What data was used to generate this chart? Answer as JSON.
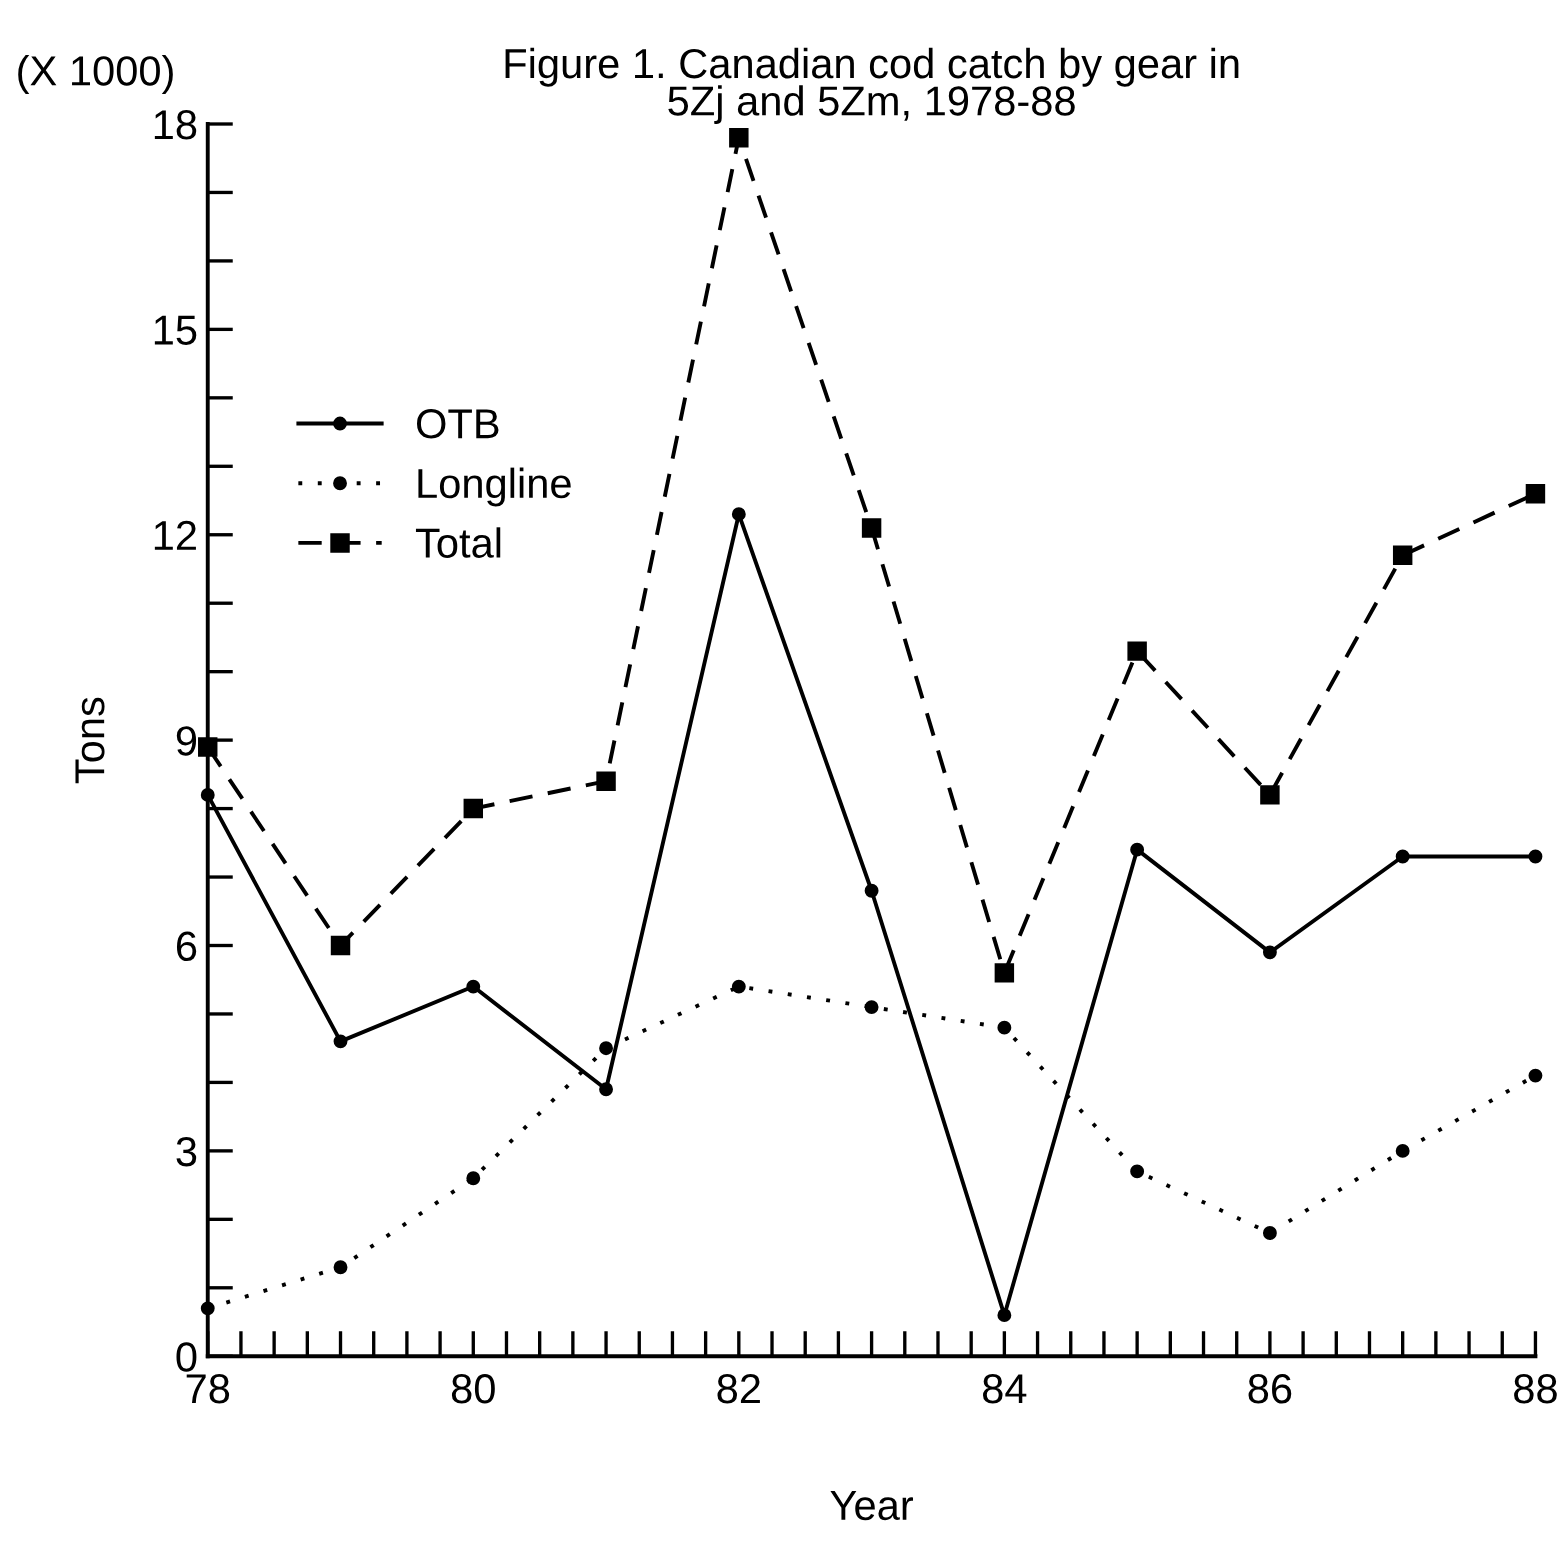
{
  "chart_data": {
    "type": "line",
    "title": "Figure 1. Canadian cod catch by gear in\n5Zj and 5Zm, 1978-88",
    "xlabel": "Year",
    "ylabel": "Tons",
    "annotations": [
      "(X 1000)"
    ],
    "x": [
      78,
      79,
      80,
      81,
      82,
      83,
      84,
      85,
      86,
      87,
      88
    ],
    "series": [
      {
        "name": "OTB",
        "color": "#000000",
        "line_style": "solid",
        "marker": "circle",
        "values": [
          8.2,
          4.6,
          5.4,
          3.9,
          12.3,
          6.8,
          0.6,
          7.4,
          5.9,
          7.3,
          7.3
        ]
      },
      {
        "name": "Longline",
        "color": "#000000",
        "line_style": "dotted",
        "marker": "circle",
        "values": [
          0.7,
          1.3,
          2.6,
          4.5,
          5.4,
          5.1,
          4.8,
          2.7,
          1.8,
          3.0,
          4.1
        ]
      },
      {
        "name": "Total",
        "color": "#000000",
        "line_style": "dashed",
        "marker": "square",
        "values": [
          8.9,
          6.0,
          8.0,
          8.4,
          17.8,
          12.1,
          5.6,
          10.3,
          8.2,
          11.7,
          12.6
        ]
      }
    ],
    "xlim": [
      78,
      88
    ],
    "ylim": [
      0,
      18
    ],
    "xticks": [
      78,
      {
        "value": 78.25,
        "label": null
      },
      {
        "value": 78.5,
        "label": null
      },
      {
        "value": 78.75,
        "label": null
      },
      {
        "value": 79,
        "label": null
      },
      {
        "value": 79.25,
        "label": null
      },
      {
        "value": 79.5,
        "label": null
      },
      {
        "value": 79.75,
        "label": null
      },
      80,
      {
        "value": 80.25,
        "label": null
      },
      {
        "value": 80.5,
        "label": null
      },
      {
        "value": 80.75,
        "label": null
      },
      {
        "value": 81,
        "label": null
      },
      {
        "value": 81.25,
        "label": null
      },
      {
        "value": 81.5,
        "label": null
      },
      {
        "value": 81.75,
        "label": null
      },
      82,
      {
        "value": 82.25,
        "label": null
      },
      {
        "value": 82.5,
        "label": null
      },
      {
        "value": 82.75,
        "label": null
      },
      {
        "value": 83,
        "label": null
      },
      {
        "value": 83.25,
        "label": null
      },
      {
        "value": 83.5,
        "label": null
      },
      {
        "value": 83.75,
        "label": null
      },
      84,
      {
        "value": 84.25,
        "label": null
      },
      {
        "value": 84.5,
        "label": null
      },
      {
        "value": 84.75,
        "label": null
      },
      {
        "value": 85,
        "label": null
      },
      {
        "value": 85.25,
        "label": null
      },
      {
        "value": 85.5,
        "label": null
      },
      {
        "value": 85.75,
        "label": null
      },
      86,
      {
        "value": 86.25,
        "label": null
      },
      {
        "value": 86.5,
        "label": null
      },
      {
        "value": 86.75,
        "label": null
      },
      {
        "value": 87,
        "label": null
      },
      {
        "value": 87.25,
        "label": null
      },
      {
        "value": 87.5,
        "label": null
      },
      {
        "value": 87.75,
        "label": null
      },
      88
    ],
    "yticks": [
      0,
      {
        "value": 1,
        "label": null
      },
      {
        "value": 2,
        "label": null
      },
      3,
      {
        "value": 4,
        "label": null
      },
      {
        "value": 5,
        "label": null
      },
      6,
      {
        "value": 7,
        "label": null
      },
      {
        "value": 8,
        "label": null
      },
      9,
      {
        "value": 10,
        "label": null
      },
      {
        "value": 11,
        "label": null
      },
      12,
      {
        "value": 13,
        "label": null
      },
      {
        "value": 14,
        "label": null
      },
      15,
      {
        "value": 16,
        "label": null
      },
      {
        "value": 17,
        "label": null
      },
      18
    ],
    "grid": false,
    "legend": "top left"
  }
}
